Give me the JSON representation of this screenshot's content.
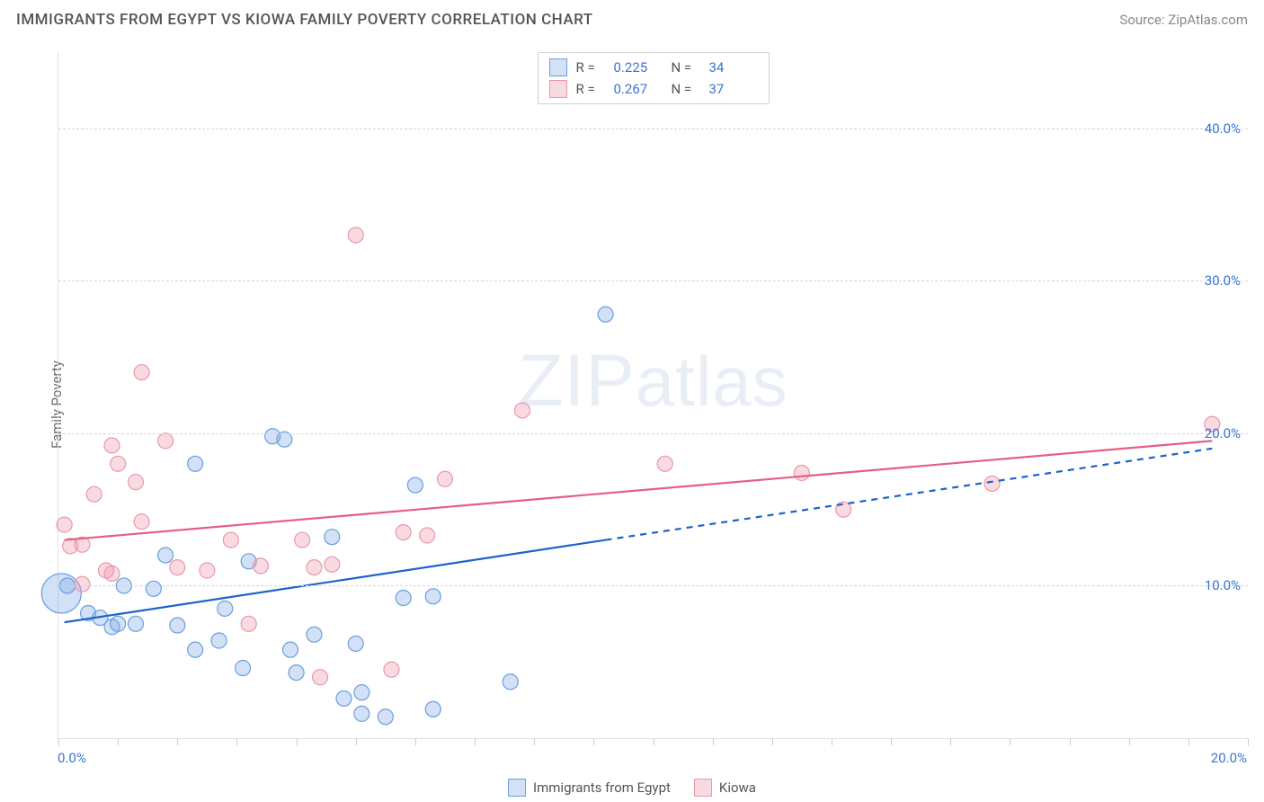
{
  "title": "IMMIGRANTS FROM EGYPT VS KIOWA FAMILY POVERTY CORRELATION CHART",
  "source_label": "Source: ",
  "source_name": "ZipAtlas.com",
  "ylabel": "Family Poverty",
  "watermark": "ZIPatlas",
  "chart": {
    "type": "scatter",
    "xlim": [
      0,
      20
    ],
    "ylim": [
      0,
      45
    ],
    "xticks": [
      {
        "value": 0,
        "label": "0.0%"
      },
      {
        "value": 20,
        "label": "20.0%"
      }
    ],
    "xtick_marks": [
      0,
      1,
      2,
      3,
      4,
      5,
      6,
      7,
      8,
      9,
      10,
      11,
      12,
      13,
      14,
      15,
      16,
      17,
      18,
      19,
      20
    ],
    "yticks": [
      {
        "value": 10,
        "label": "10.0%"
      },
      {
        "value": 20,
        "label": "20.0%"
      },
      {
        "value": 30,
        "label": "30.0%"
      },
      {
        "value": 40,
        "label": "40.0%"
      }
    ],
    "grid_color": "#d5d5d5",
    "background_color": "#ffffff",
    "axis_color": "#e0e0e0",
    "tick_label_color": "#3b74d1",
    "marker_radius": 8.5,
    "marker_stroke_width": 1.2,
    "series": [
      {
        "name": "Immigrants from Egypt",
        "color_fill": "rgba(126,170,230,0.35)",
        "color_stroke": "#6a9ee0",
        "r": 0.225,
        "n": 34,
        "trend_color": "#1f62c9",
        "trend_start": {
          "x": 0.1,
          "y": 7.6
        },
        "trend_solid_end": {
          "x": 9.2,
          "y": 13.0
        },
        "trend_dashed_end": {
          "x": 19.4,
          "y": 19.0
        },
        "points": [
          {
            "x": 0.05,
            "y": 9.5,
            "r": 22
          },
          {
            "x": 0.15,
            "y": 10.0
          },
          {
            "x": 0.5,
            "y": 8.2
          },
          {
            "x": 0.7,
            "y": 7.9
          },
          {
            "x": 0.9,
            "y": 7.3
          },
          {
            "x": 1.0,
            "y": 7.5
          },
          {
            "x": 1.1,
            "y": 10.0
          },
          {
            "x": 1.3,
            "y": 7.5
          },
          {
            "x": 1.6,
            "y": 9.8
          },
          {
            "x": 1.8,
            "y": 12.0
          },
          {
            "x": 2.0,
            "y": 7.4
          },
          {
            "x": 2.3,
            "y": 5.8
          },
          {
            "x": 2.3,
            "y": 18.0
          },
          {
            "x": 2.7,
            "y": 6.4
          },
          {
            "x": 2.8,
            "y": 8.5
          },
          {
            "x": 3.1,
            "y": 4.6
          },
          {
            "x": 3.2,
            "y": 11.6
          },
          {
            "x": 3.6,
            "y": 19.8
          },
          {
            "x": 3.8,
            "y": 19.6
          },
          {
            "x": 3.9,
            "y": 5.8
          },
          {
            "x": 4.0,
            "y": 4.3
          },
          {
            "x": 4.3,
            "y": 6.8
          },
          {
            "x": 4.6,
            "y": 13.2
          },
          {
            "x": 4.8,
            "y": 2.6
          },
          {
            "x": 5.0,
            "y": 6.2
          },
          {
            "x": 5.1,
            "y": 3.0
          },
          {
            "x": 5.1,
            "y": 1.6
          },
          {
            "x": 5.5,
            "y": 1.4
          },
          {
            "x": 5.8,
            "y": 9.2
          },
          {
            "x": 6.0,
            "y": 16.6
          },
          {
            "x": 6.3,
            "y": 9.3
          },
          {
            "x": 6.3,
            "y": 1.9
          },
          {
            "x": 7.6,
            "y": 3.7
          },
          {
            "x": 9.2,
            "y": 27.8
          }
        ]
      },
      {
        "name": "Kiowa",
        "color_fill": "rgba(240,150,170,0.35)",
        "color_stroke": "#e799aa",
        "r": 0.267,
        "n": 37,
        "trend_color": "#e55f82",
        "trend_start": {
          "x": 0.1,
          "y": 13.0
        },
        "trend_solid_end": {
          "x": 19.4,
          "y": 19.5
        },
        "trend_dashed_end": null,
        "points": [
          {
            "x": 0.1,
            "y": 14.0
          },
          {
            "x": 0.2,
            "y": 12.6
          },
          {
            "x": 0.4,
            "y": 10.1
          },
          {
            "x": 0.4,
            "y": 12.7
          },
          {
            "x": 0.6,
            "y": 16.0
          },
          {
            "x": 0.8,
            "y": 11.0
          },
          {
            "x": 0.9,
            "y": 10.8
          },
          {
            "x": 0.9,
            "y": 19.2
          },
          {
            "x": 1.0,
            "y": 18.0
          },
          {
            "x": 1.3,
            "y": 16.8
          },
          {
            "x": 1.4,
            "y": 14.2
          },
          {
            "x": 1.4,
            "y": 24.0
          },
          {
            "x": 1.8,
            "y": 19.5
          },
          {
            "x": 2.0,
            "y": 11.2
          },
          {
            "x": 2.5,
            "y": 11.0
          },
          {
            "x": 2.9,
            "y": 13.0
          },
          {
            "x": 3.2,
            "y": 7.5
          },
          {
            "x": 3.4,
            "y": 11.3
          },
          {
            "x": 4.1,
            "y": 13.0
          },
          {
            "x": 4.3,
            "y": 11.2
          },
          {
            "x": 4.4,
            "y": 4.0
          },
          {
            "x": 4.6,
            "y": 11.4
          },
          {
            "x": 5.0,
            "y": 33.0
          },
          {
            "x": 5.6,
            "y": 4.5
          },
          {
            "x": 5.8,
            "y": 13.5
          },
          {
            "x": 6.2,
            "y": 13.3
          },
          {
            "x": 6.5,
            "y": 17.0
          },
          {
            "x": 7.8,
            "y": 21.5
          },
          {
            "x": 10.2,
            "y": 18.0
          },
          {
            "x": 12.5,
            "y": 17.4
          },
          {
            "x": 13.2,
            "y": 15.0
          },
          {
            "x": 15.7,
            "y": 16.7
          },
          {
            "x": 19.4,
            "y": 20.6
          }
        ]
      }
    ]
  },
  "legend_top": {
    "rows": [
      {
        "swatch_fill": "rgba(126,170,230,0.35)",
        "swatch_stroke": "#6a9ee0",
        "r_label": "R =",
        "r": "0.225",
        "n_label": "N =",
        "n": "34"
      },
      {
        "swatch_fill": "rgba(240,150,170,0.35)",
        "swatch_stroke": "#e799aa",
        "r_label": "R =",
        "r": "0.267",
        "n_label": "N =",
        "n": "37"
      }
    ]
  },
  "legend_bottom": {
    "items": [
      {
        "swatch_fill": "rgba(126,170,230,0.35)",
        "swatch_stroke": "#6a9ee0",
        "label": "Immigrants from Egypt"
      },
      {
        "swatch_fill": "rgba(240,150,170,0.35)",
        "swatch_stroke": "#e799aa",
        "label": "Kiowa"
      }
    ]
  }
}
